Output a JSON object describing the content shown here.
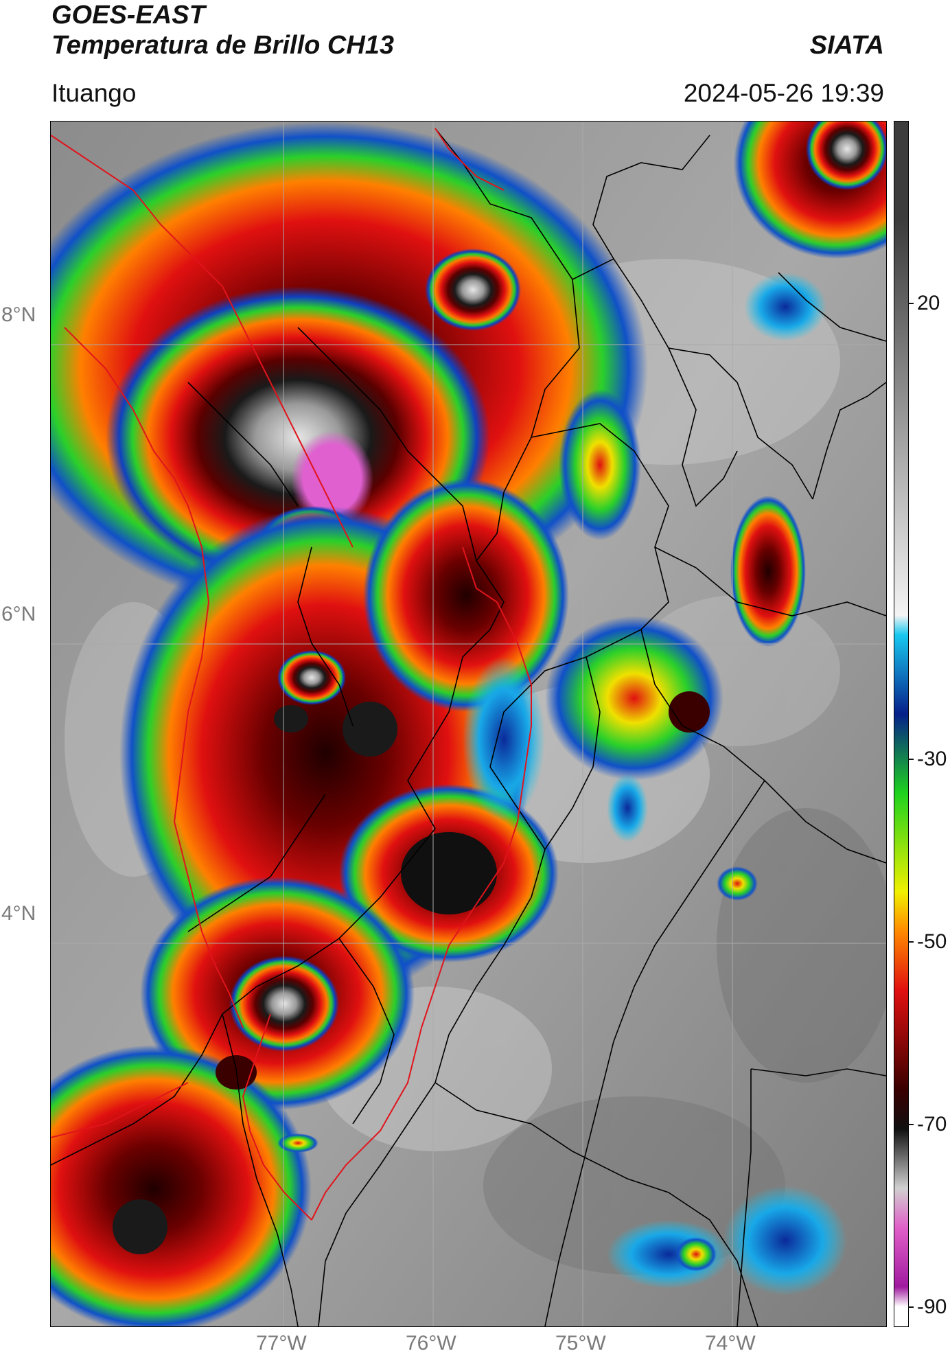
{
  "header": {
    "title_line1": "GOES-EAST",
    "title_line2": "Temperatura de Brillo CH13",
    "organization": "SIATA",
    "region": "Ituango",
    "timestamp": "2024-05-26 19:39"
  },
  "map": {
    "latitude_labels": [
      "8°N",
      "6°N",
      "4°N"
    ],
    "longitude_labels": [
      "77°W",
      "76°W",
      "75°W",
      "74°W"
    ],
    "border_colors": {
      "department_lines": "#000000",
      "highlight_lines": "#e0141c"
    }
  },
  "colorbar": {
    "tick_labels": [
      "20",
      "-30",
      "-50",
      "-70",
      "-90"
    ],
    "units_hint": "",
    "stops": [
      {
        "v": 20,
        "color": "#3c3c3c"
      },
      {
        "v": -20,
        "color": "#f4f4f4"
      },
      {
        "v": -22,
        "color": "#18c8f0"
      },
      {
        "v": -30,
        "color": "#06208a"
      },
      {
        "v": -38,
        "color": "#1ed21e"
      },
      {
        "v": -48,
        "color": "#f0f000"
      },
      {
        "v": -52,
        "color": "#ff8a00"
      },
      {
        "v": -58,
        "color": "#e01010"
      },
      {
        "v": -68,
        "color": "#3a0000"
      },
      {
        "v": -72,
        "color": "#101010"
      },
      {
        "v": -78,
        "color": "#d0d0d0"
      },
      {
        "v": -82,
        "color": "#e060c8"
      },
      {
        "v": -88,
        "color": "#a01aa0"
      },
      {
        "v": -90,
        "color": "#ffffff"
      }
    ]
  }
}
